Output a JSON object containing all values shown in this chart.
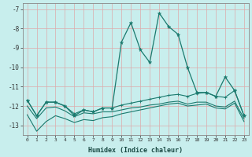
{
  "title": "",
  "xlabel": "Humidex (Indice chaleur)",
  "background_color": "#c8eeed",
  "grid_color": "#aadddd",
  "line_color": "#1a7a6e",
  "xlim": [
    -0.5,
    23.5
  ],
  "ylim": [
    -13.5,
    -6.7
  ],
  "yticks": [
    -7,
    -8,
    -9,
    -10,
    -11,
    -12,
    -13
  ],
  "xticks": [
    0,
    1,
    2,
    3,
    4,
    5,
    6,
    7,
    8,
    9,
    10,
    11,
    12,
    13,
    14,
    15,
    16,
    17,
    18,
    19,
    20,
    21,
    22,
    23
  ],
  "series": {
    "main": {
      "x": [
        0,
        1,
        2,
        3,
        4,
        5,
        6,
        7,
        8,
        9,
        10,
        11,
        12,
        13,
        14,
        15,
        16,
        17,
        18,
        19,
        20,
        21,
        22,
        23
      ],
      "y": [
        -11.7,
        -12.5,
        -11.8,
        -11.8,
        -12.0,
        -12.5,
        -12.2,
        -12.3,
        -12.1,
        -12.1,
        -8.7,
        -7.7,
        -9.1,
        -9.75,
        -7.2,
        -7.9,
        -8.3,
        -10.0,
        -11.3,
        -11.3,
        -11.5,
        -10.5,
        -11.2,
        -12.5
      ]
    },
    "upper": {
      "x": [
        0,
        1,
        2,
        3,
        4,
        5,
        6,
        7,
        8,
        9,
        10,
        11,
        12,
        13,
        14,
        15,
        16,
        17,
        18,
        19,
        20,
        21,
        22,
        23
      ],
      "y": [
        -11.7,
        -12.5,
        -11.8,
        -11.8,
        -12.0,
        -12.4,
        -12.2,
        -12.3,
        -12.1,
        -12.1,
        -11.95,
        -11.85,
        -11.75,
        -11.65,
        -11.55,
        -11.45,
        -11.4,
        -11.5,
        -11.35,
        -11.3,
        -11.5,
        -11.55,
        -11.2,
        -12.5
      ]
    },
    "lower_mid": {
      "x": [
        0,
        1,
        2,
        3,
        4,
        5,
        6,
        7,
        8,
        9,
        10,
        11,
        12,
        13,
        14,
        15,
        16,
        17,
        18,
        19,
        20,
        21,
        22,
        23
      ],
      "y": [
        -12.0,
        -12.65,
        -12.1,
        -12.05,
        -12.25,
        -12.55,
        -12.35,
        -12.4,
        -12.3,
        -12.3,
        -12.2,
        -12.1,
        -12.05,
        -11.95,
        -11.9,
        -11.8,
        -11.75,
        -11.9,
        -11.8,
        -11.8,
        -12.0,
        -12.05,
        -11.75,
        -12.65
      ]
    },
    "bottom": {
      "x": [
        0,
        1,
        2,
        3,
        4,
        5,
        6,
        7,
        8,
        9,
        10,
        11,
        12,
        13,
        14,
        15,
        16,
        17,
        18,
        19,
        20,
        21,
        22,
        23
      ],
      "y": [
        -12.45,
        -13.3,
        -12.8,
        -12.5,
        -12.65,
        -12.85,
        -12.7,
        -12.75,
        -12.6,
        -12.55,
        -12.4,
        -12.3,
        -12.2,
        -12.1,
        -12.0,
        -11.9,
        -11.85,
        -12.0,
        -11.95,
        -11.9,
        -12.1,
        -12.15,
        -11.85,
        -12.8
      ]
    }
  }
}
